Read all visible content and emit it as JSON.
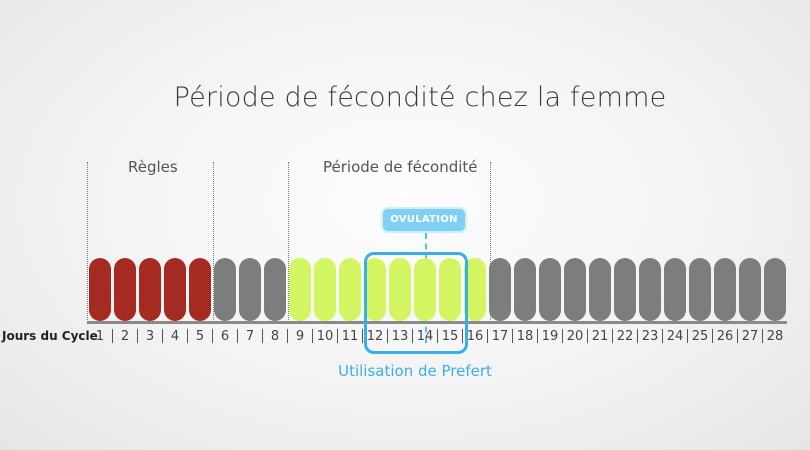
{
  "title": "Période de fécondité chez la femme",
  "phases": {
    "regles": "Règles",
    "fecondite": "Période de fécondité"
  },
  "ovulation": "OVULATION",
  "axis_label": "Jours du Cycle",
  "prefert": "Utilisation de Prefert",
  "colors": {
    "regles": "#a52b22",
    "fertile": "#d4f562",
    "neutral": "#7b7e7c",
    "accent": "#3aaeea"
  },
  "days": [
    {
      "n": "1",
      "type": "regles"
    },
    {
      "n": "2",
      "type": "regles"
    },
    {
      "n": "3",
      "type": "regles"
    },
    {
      "n": "4",
      "type": "regles"
    },
    {
      "n": "5",
      "type": "regles"
    },
    {
      "n": "6",
      "type": "neutral"
    },
    {
      "n": "7",
      "type": "neutral"
    },
    {
      "n": "8",
      "type": "neutral"
    },
    {
      "n": "9",
      "type": "fertile"
    },
    {
      "n": "10",
      "type": "fertile"
    },
    {
      "n": "11",
      "type": "fertile"
    },
    {
      "n": "12",
      "type": "fertile"
    },
    {
      "n": "13",
      "type": "fertile"
    },
    {
      "n": "14",
      "type": "fertile"
    },
    {
      "n": "15",
      "type": "fertile"
    },
    {
      "n": "16",
      "type": "fertile"
    },
    {
      "n": "17",
      "type": "neutral"
    },
    {
      "n": "18",
      "type": "neutral"
    },
    {
      "n": "19",
      "type": "neutral"
    },
    {
      "n": "20",
      "type": "neutral"
    },
    {
      "n": "21",
      "type": "neutral"
    },
    {
      "n": "22",
      "type": "neutral"
    },
    {
      "n": "23",
      "type": "neutral"
    },
    {
      "n": "24",
      "type": "neutral"
    },
    {
      "n": "25",
      "type": "neutral"
    },
    {
      "n": "26",
      "type": "neutral"
    },
    {
      "n": "27",
      "type": "neutral"
    },
    {
      "n": "28",
      "type": "neutral"
    }
  ]
}
